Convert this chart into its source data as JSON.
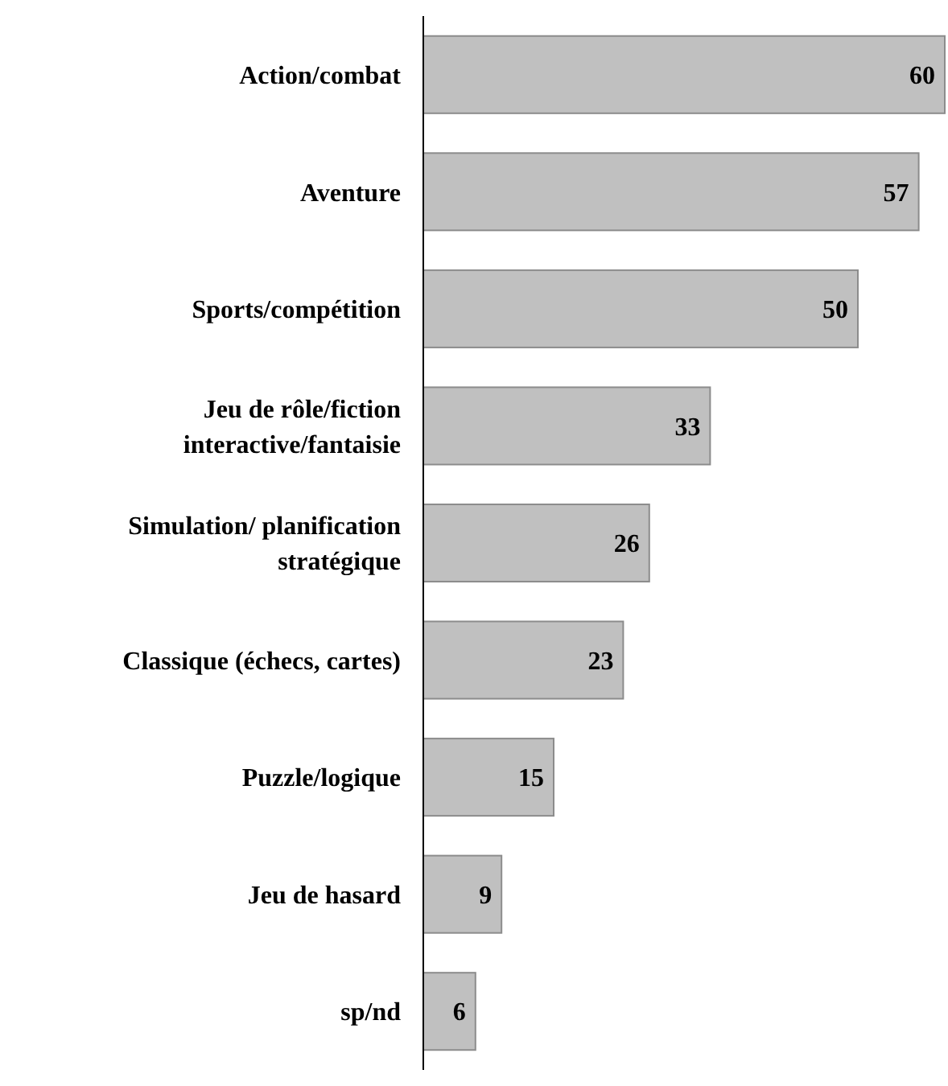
{
  "chart_data": {
    "type": "bar",
    "orientation": "horizontal",
    "data_labels": true,
    "color": "#c0c0c0",
    "categories": [
      "Action/combat",
      "Aventure",
      "Sports/compétition",
      "Jeu de rôle/fiction interactive/fantaisie",
      "Simulation/ planification stratégique",
      "Classique (échecs, cartes)",
      "Puzzle/logique",
      "Jeu de hasard",
      "sp/nd"
    ],
    "values": [
      60,
      57,
      50,
      33,
      26,
      23,
      15,
      9,
      6
    ]
  }
}
